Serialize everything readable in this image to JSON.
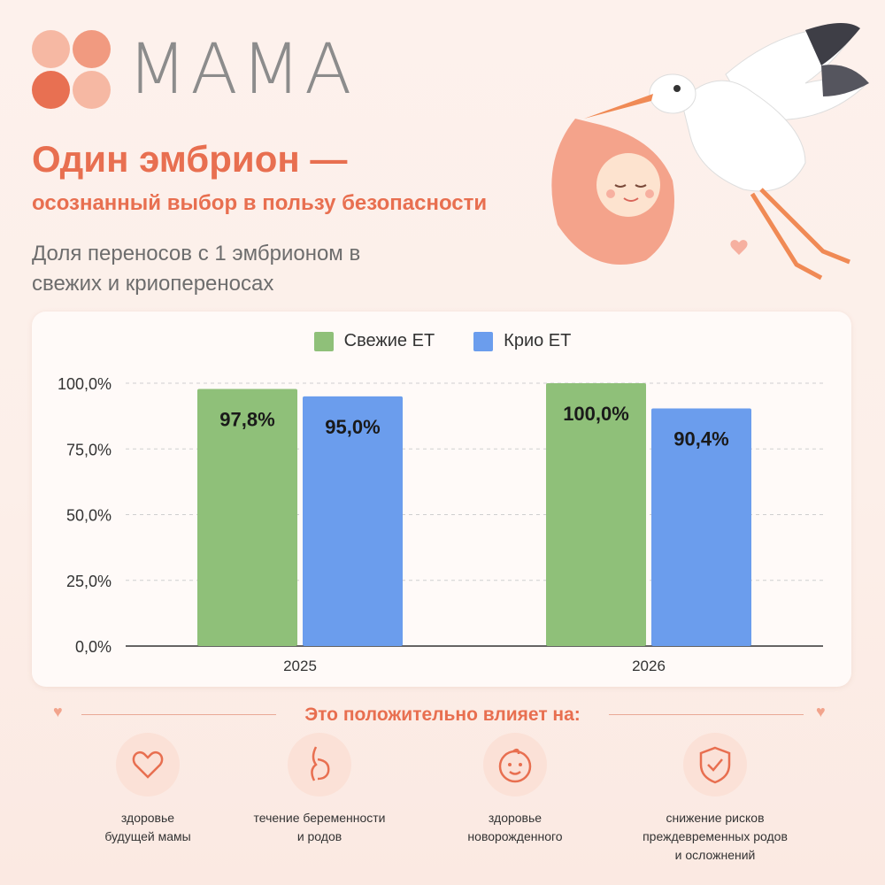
{
  "brand": {
    "name": "MAMA"
  },
  "header": {
    "title": "Один эмбрион —",
    "subtitle_line": "осознанный выбор в пользу безопасности",
    "description": "Доля переносов с 1 эмбрионом в свежих и криопереносах"
  },
  "colors": {
    "accent": "#e86f50",
    "fresh": "#8fc079",
    "cryo": "#6b9ded"
  },
  "chart_data": {
    "type": "bar",
    "categories": [
      "2025",
      "2026"
    ],
    "series": [
      {
        "name": "Свежие ЕТ",
        "values": [
          97.8,
          100.0
        ],
        "labels": [
          "97,8%",
          "100,0%"
        ],
        "color": "#8fc079"
      },
      {
        "name": "Крио ЕТ",
        "values": [
          95.0,
          90.4
        ],
        "labels": [
          "95,0%",
          "90,4%"
        ],
        "color": "#6b9ded"
      }
    ],
    "y_ticks": [
      "0,0%",
      "25,0%",
      "50,0%",
      "75,0%",
      "100,0%"
    ],
    "ylim": [
      0,
      100
    ],
    "grid": true,
    "legend": "top-center"
  },
  "effects": {
    "title": "Это положительно влияет на:",
    "items": [
      {
        "label": "здоровье\nбудущей мамы",
        "icon": "heart-icon"
      },
      {
        "label": "течение беременности\nи родов",
        "icon": "pregnant-woman-icon"
      },
      {
        "label": "здоровье\nноворожденного",
        "icon": "baby-face-icon"
      },
      {
        "label": "снижение рисков\nпреждевременных родов\nи осложнений",
        "icon": "shield-check-icon"
      }
    ]
  }
}
